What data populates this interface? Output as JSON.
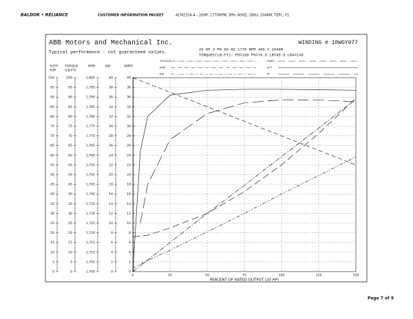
{
  "header": {
    "brand": "BALDOR • RELIANCE",
    "packet": "CUSTOMER INFORMATION PACKET",
    "description": "ACM2334-4 - 20HP, 1770RPM, 3PH, 60HZ, 286U, 1046M, TEFC, F1"
  },
  "company": "ABB Motors and Mechanical Inc.",
  "note": "Typical performance - not guaranteed values.",
  "winding": "WINDING # 10WGY977",
  "specs": "20 HP  3 PH  60 HZ  1770 RPM  460 V  1046M",
  "torques": "TORQUES(LB-FT): PO=189  PO=76.6  LR=95.9  LRA=145",
  "footer": "Page 7 of 9",
  "chart_data": {
    "type": "line",
    "xlabel": "PERCENT OF RATED OUTPUT (20 HP)",
    "x": [
      0,
      5,
      10,
      25,
      50,
      75,
      100,
      125,
      150
    ],
    "xlim": [
      0,
      150
    ],
    "xticks": [
      0,
      25,
      50,
      75,
      100,
      125,
      150
    ],
    "grid": true,
    "axes": [
      {
        "header": [
          "%EFF",
          "%PF"
        ],
        "ylim": [
          0,
          100
        ],
        "yticks": [
          0,
          5,
          10,
          15,
          20,
          25,
          30,
          35,
          40,
          45,
          50,
          55,
          60,
          65,
          70,
          75,
          80,
          85,
          90,
          95,
          100
        ]
      },
      {
        "header": [
          "TORQUE",
          "(LB-FT)"
        ],
        "ylim": [
          0,
          100
        ],
        "yticks": [
          0,
          5,
          10,
          15,
          20,
          25,
          30,
          35,
          40,
          45,
          50,
          55,
          60,
          65,
          70,
          75,
          80,
          85,
          90,
          95,
          100
        ]
      },
      {
        "header": [
          "RPM"
        ],
        "ylim": [
          1700,
          1800
        ],
        "yticks": [
          {
            "value": 1700,
            "label": "1,700"
          },
          {
            "value": 1705,
            "label": "1,705"
          },
          {
            "value": 1710,
            "label": "1,710"
          },
          {
            "value": 1715,
            "label": "1,715"
          },
          {
            "value": 1720,
            "label": "1,720"
          },
          {
            "value": 1725,
            "label": "1,725"
          },
          {
            "value": 1730,
            "label": "1,730"
          },
          {
            "value": 1735,
            "label": "1,735"
          },
          {
            "value": 1740,
            "label": "1,740"
          },
          {
            "value": 1745,
            "label": "1,745"
          },
          {
            "value": 1750,
            "label": "1,750"
          },
          {
            "value": 1755,
            "label": "1,755"
          },
          {
            "value": 1760,
            "label": "1,760"
          },
          {
            "value": 1765,
            "label": "1,765"
          },
          {
            "value": 1770,
            "label": "1,770"
          },
          {
            "value": 1775,
            "label": "1,775"
          },
          {
            "value": 1780,
            "label": "1,780"
          },
          {
            "value": 1785,
            "label": "1,785"
          },
          {
            "value": 1790,
            "label": "1,790"
          },
          {
            "value": 1795,
            "label": "1,795"
          },
          {
            "value": 1800,
            "label": "1,800"
          }
        ]
      },
      {
        "header": [
          "KW"
        ],
        "ylim": [
          0,
          40
        ],
        "yticks": [
          0,
          2,
          4,
          6,
          8,
          10,
          12,
          14,
          16,
          18,
          20,
          22,
          24,
          26,
          28,
          30,
          32,
          34,
          36,
          38,
          40
        ]
      },
      {
        "header": [
          "AMPS"
        ],
        "ylim": [
          0,
          40
        ],
        "yticks": [
          0,
          2,
          4,
          6,
          8,
          10,
          12,
          14,
          16,
          18,
          20,
          22,
          24,
          26,
          28,
          30,
          32,
          34,
          36,
          38,
          40
        ]
      }
    ],
    "series": [
      {
        "name": "TORQUE",
        "axis": 1,
        "values": [
          0,
          3,
          6,
          15,
          30,
          44.5,
          59.3,
          74,
          89
        ]
      },
      {
        "name": "RPM",
        "axis": 2,
        "values": [
          1800,
          1798.5,
          1797,
          1792.5,
          1785,
          1777.5,
          1770,
          1762.5,
          1755
        ]
      },
      {
        "name": "KW",
        "axis": 3,
        "values": [
          0.7,
          1.5,
          2.3,
          4.4,
          8.2,
          12,
          16,
          19.8,
          23.7
        ]
      },
      {
        "name": "AMPS",
        "axis": 4,
        "values": [
          7.2,
          7.3,
          7.5,
          9,
          12,
          16.5,
          22,
          28.5,
          35.7
        ]
      },
      {
        "name": "EFF",
        "axis": 0,
        "values": [
          0,
          62,
          80,
          91,
          93.5,
          94,
          94,
          93.8,
          93.5
        ]
      },
      {
        "name": "PF",
        "axis": 0,
        "values": [
          null,
          25,
          45,
          68,
          81.5,
          87,
          88.6,
          88.5,
          87.6
        ]
      }
    ]
  }
}
